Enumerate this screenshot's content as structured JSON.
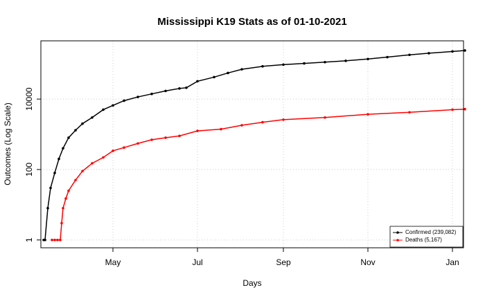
{
  "chart_data": {
    "type": "line",
    "title": "Mississippi K19 Stats as of 01-10-2021",
    "x_label": "Days",
    "y_label": "Outcomes (Log Scale)",
    "log_y": true,
    "grid": true,
    "legend_position": "bottom-right",
    "xlim": [
      70,
      375
    ],
    "ylim": [
      0.6,
      450000
    ],
    "xticks": [
      {
        "value": 122,
        "label": "May"
      },
      {
        "value": 183,
        "label": "Jul"
      },
      {
        "value": 245,
        "label": "Sep"
      },
      {
        "value": 306,
        "label": "Nov"
      },
      {
        "value": 367,
        "label": "Jan"
      }
    ],
    "yticks": [
      1,
      100,
      10000
    ],
    "series": [
      {
        "name": "Confirmed (239,082)",
        "color": "#000000",
        "x": [
          72,
          73,
          75,
          77,
          80,
          83,
          86,
          90,
          95,
          100,
          107,
          115,
          122,
          130,
          140,
          150,
          160,
          170,
          175,
          183,
          195,
          205,
          215,
          230,
          245,
          260,
          275,
          290,
          306,
          320,
          336,
          350,
          367,
          376
        ],
        "values": [
          1,
          1,
          8,
          30,
          80,
          200,
          400,
          800,
          1300,
          2000,
          3000,
          5000,
          6600,
          9000,
          11500,
          14000,
          17000,
          20000,
          21000,
          32000,
          42000,
          55000,
          70000,
          85000,
          95000,
          103000,
          112000,
          122000,
          137000,
          155000,
          180000,
          200000,
          225000,
          239082
        ]
      },
      {
        "name": "Deaths (5,167)",
        "color": "#ff0000",
        "x": [
          78,
          80,
          82,
          84,
          85,
          86,
          88,
          90,
          95,
          100,
          107,
          115,
          122,
          130,
          140,
          150,
          160,
          170,
          183,
          200,
          215,
          230,
          245,
          275,
          306,
          336,
          367,
          376
        ],
        "values": [
          1,
          1,
          1,
          1,
          3,
          8,
          15,
          25,
          50,
          90,
          150,
          220,
          340,
          420,
          550,
          700,
          800,
          900,
          1250,
          1400,
          1800,
          2200,
          2600,
          3000,
          3700,
          4200,
          5000,
          5167
        ]
      }
    ]
  }
}
